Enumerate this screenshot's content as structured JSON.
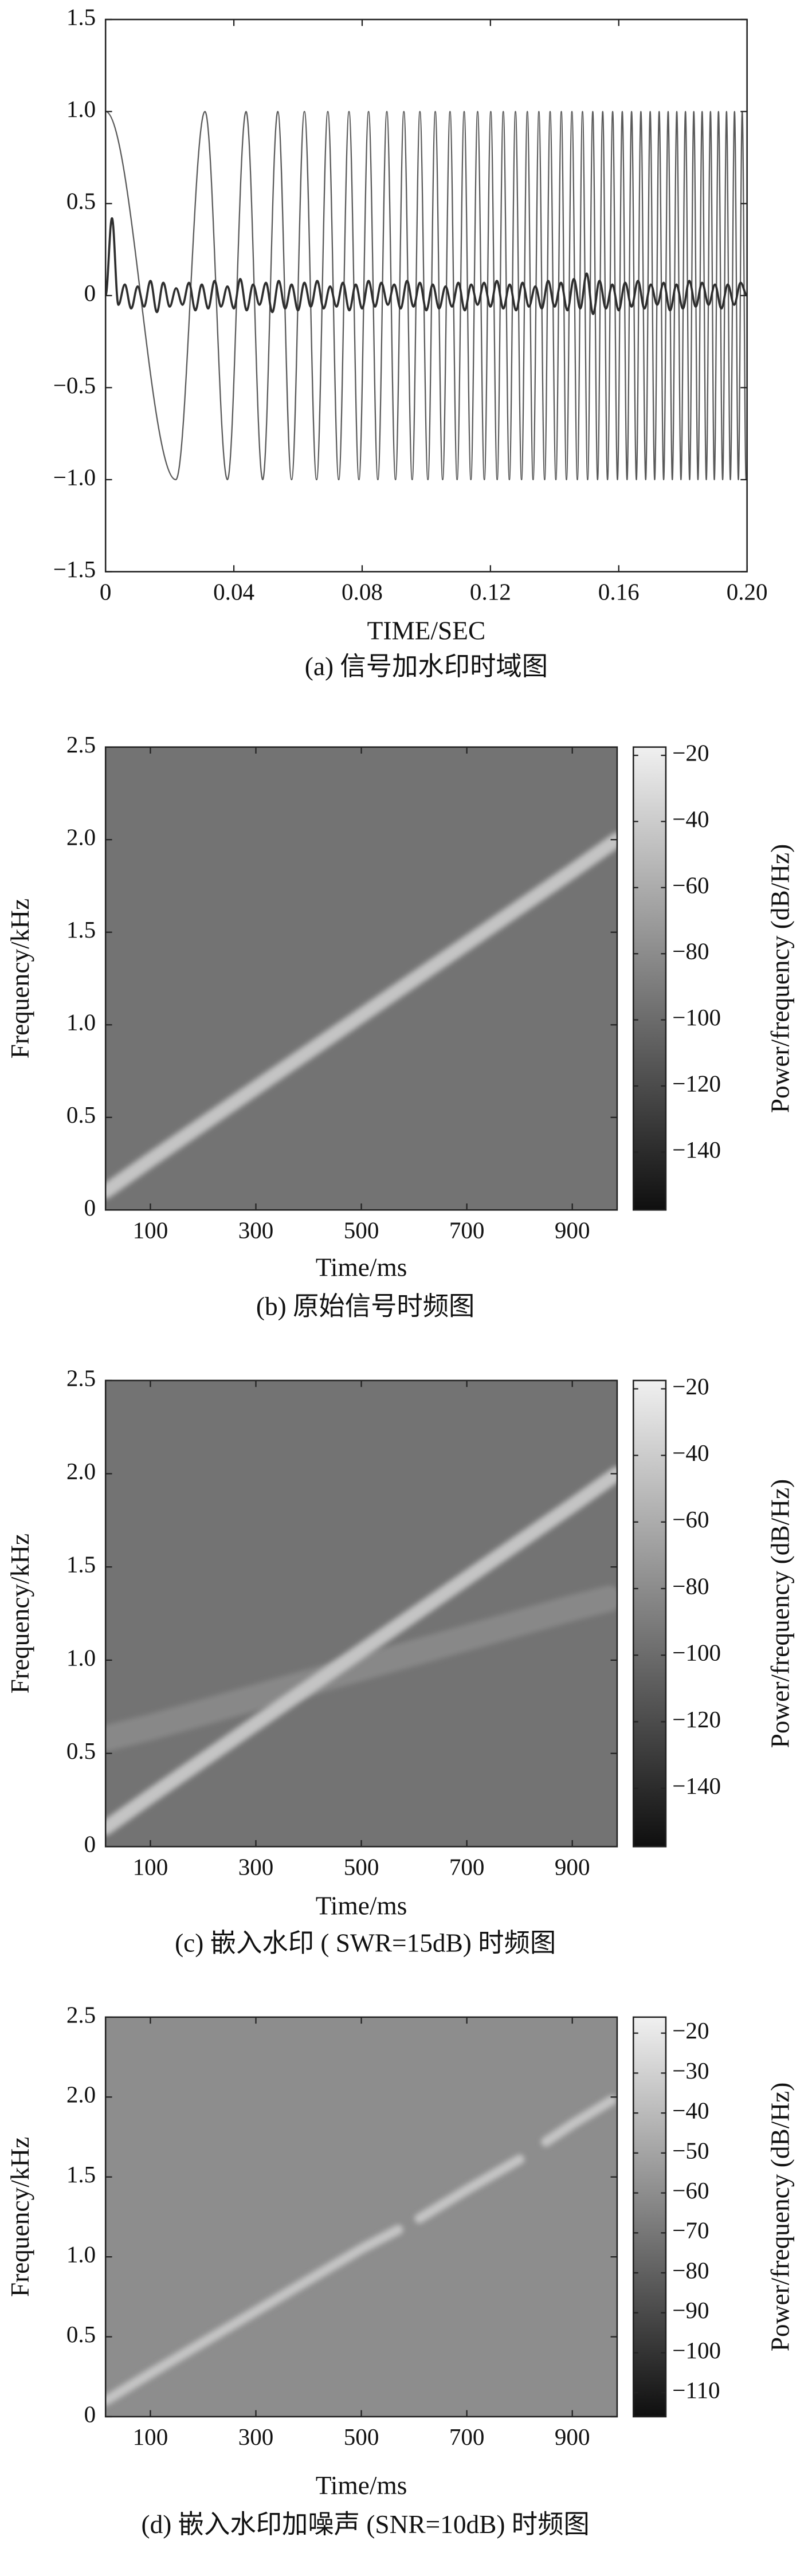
{
  "chart_data": [
    {
      "type": "line",
      "xlabel": "TIME/SEC",
      "caption": "(a) 信号加水印时域图",
      "xlim": [
        0,
        0.2
      ],
      "xticks": [
        0,
        0.04,
        0.08,
        0.12,
        0.16,
        {
          "value": 0.2,
          "label": "0.20"
        }
      ],
      "ylim": [
        -1.5,
        1.5
      ],
      "yticks": [
        {
          "value": -1.5,
          "label": "−1.5"
        },
        {
          "value": -1,
          "label": "−1.0"
        },
        {
          "value": -0.5,
          "label": "−0.5"
        },
        0,
        0.5,
        {
          "value": 1,
          "label": "1.0"
        },
        1.5
      ],
      "series": [
        {
          "color": "#5a5a5a",
          "x": [
            0,
            0.0219,
            0.031,
            0.038,
            0.0438,
            0.049,
            0.0537,
            0.058,
            0.062,
            0.0658,
            0.0693,
            0.0727,
            0.0759,
            0.079,
            0.082,
            0.0849,
            0.0877,
            0.0904,
            0.093,
            0.0956,
            0.098,
            0.1005,
            0.1028,
            0.1051,
            0.1074,
            0.1096,
            0.1118,
            0.1139,
            0.116,
            0.1181,
            0.1201,
            0.1221,
            0.124,
            0.1259,
            0.1278,
            0.1297,
            0.1315,
            0.1333,
            0.1351,
            0.1369,
            0.1386,
            0.1404,
            0.1421,
            0.1437,
            0.1454,
            0.1471,
            0.1487,
            0.1503,
            0.1519,
            0.1534,
            0.155,
            0.1565,
            0.1581,
            0.1596,
            0.1611,
            0.1626,
            0.164,
            0.1655,
            0.1669,
            0.1684,
            0.1698,
            0.1712,
            0.1726,
            0.174,
            0.1754,
            0.1767,
            0.1781,
            0.1794,
            0.1808,
            0.1821,
            0.1834,
            0.1847,
            0.186,
            0.1873,
            0.1886,
            0.1898,
            0.1911,
            0.1924,
            0.1936,
            0.1948,
            0.1961,
            0.1973,
            0.1985,
            0.1997
          ],
          "values": [
            1,
            -1,
            1,
            -1,
            1,
            -1,
            1,
            -1,
            1,
            -1,
            1,
            -1,
            1,
            -1,
            1,
            -1,
            1,
            -1,
            1,
            -1,
            1,
            -1,
            1,
            -1,
            1,
            -1,
            1,
            -1,
            1,
            -1,
            1,
            -1,
            1,
            -1,
            1,
            -1,
            1,
            -1,
            1,
            -1,
            1,
            -1,
            1,
            -1,
            1,
            -1,
            1,
            -1,
            1,
            -1,
            1,
            -1,
            1,
            -1,
            1,
            -1,
            1,
            -1,
            1,
            -1,
            1,
            -1,
            1,
            -1,
            1,
            -1,
            1,
            -1,
            1,
            -1,
            1,
            -1,
            1,
            -1,
            1,
            -1,
            1,
            -1,
            1,
            -1,
            1,
            -1,
            1,
            -1
          ]
        },
        {
          "color": "#2e2e2e",
          "x": [
            0,
            0.002,
            0.004,
            0.006,
            0.008,
            0.01,
            0.012,
            0.014,
            0.016,
            0.018,
            0.02,
            0.022,
            0.024,
            0.026,
            0.028,
            0.03,
            0.032,
            0.034,
            0.036,
            0.038,
            0.04,
            0.042,
            0.044,
            0.046,
            0.048,
            0.05,
            0.052,
            0.054,
            0.056,
            0.058,
            0.06,
            0.062,
            0.064,
            0.066,
            0.068,
            0.07,
            0.072,
            0.074,
            0.076,
            0.078,
            0.08,
            0.082,
            0.084,
            0.086,
            0.088,
            0.09,
            0.092,
            0.094,
            0.096,
            0.098,
            0.1,
            0.102,
            0.104,
            0.106,
            0.108,
            0.11,
            0.112,
            0.114,
            0.116,
            0.118,
            0.12,
            0.122,
            0.124,
            0.126,
            0.128,
            0.13,
            0.132,
            0.134,
            0.136,
            0.138,
            0.14,
            0.142,
            0.144,
            0.146,
            0.148,
            0.15,
            0.152,
            0.154,
            0.156,
            0.158,
            0.16,
            0.162,
            0.164,
            0.166,
            0.168,
            0.17,
            0.172,
            0.174,
            0.176,
            0.178,
            0.18,
            0.182,
            0.184,
            0.186,
            0.188,
            0.19,
            0.192,
            0.194,
            0.196,
            0.198,
            0.2
          ],
          "values": [
            0,
            0.42,
            -0.05,
            0.06,
            -0.07,
            0.05,
            -0.06,
            0.08,
            -0.09,
            0.07,
            -0.06,
            0.04,
            -0.05,
            0.07,
            -0.08,
            0.06,
            -0.07,
            0.08,
            -0.06,
            0.05,
            -0.07,
            0.09,
            -0.08,
            0.06,
            -0.05,
            0.07,
            -0.09,
            0.08,
            -0.07,
            0.06,
            -0.08,
            0.07,
            -0.06,
            0.08,
            -0.07,
            0.05,
            -0.06,
            0.07,
            -0.08,
            0.06,
            -0.07,
            0.08,
            -0.06,
            0.07,
            -0.05,
            0.06,
            -0.07,
            0.08,
            -0.06,
            0.07,
            -0.08,
            0.06,
            -0.07,
            0.05,
            -0.06,
            0.07,
            -0.08,
            0.06,
            -0.05,
            0.07,
            -0.06,
            0.08,
            -0.07,
            0.06,
            -0.08,
            0.07,
            -0.06,
            0.05,
            -0.07,
            0.08,
            -0.06,
            0.07,
            -0.08,
            0.09,
            -0.07,
            0.12,
            -0.1,
            0.08,
            -0.07,
            0.06,
            -0.08,
            0.07,
            -0.06,
            0.08,
            -0.07,
            0.06,
            -0.05,
            0.07,
            -0.08,
            0.06,
            -0.07,
            0.08,
            -0.06,
            0.07,
            -0.05,
            0.06,
            -0.07,
            0.06,
            -0.05,
            0.07,
            0
          ]
        }
      ]
    },
    {
      "type": "spectrogram",
      "xlabel": "Time/ms",
      "ylabel": "Frequency/kHz",
      "colorbar_label": "Power/frequency (dB/Hz)",
      "caption": "(b) 原始信号时频图",
      "xlim": [
        15,
        985
      ],
      "xticks": [
        100,
        300,
        500,
        700,
        900
      ],
      "ylim": [
        0,
        2.5
      ],
      "yticks": [
        0,
        0.5,
        {
          "value": 1,
          "label": "1.0"
        },
        1.5,
        {
          "value": 2,
          "label": "2.0"
        },
        2.5
      ],
      "clim": [
        -157.5,
        -17.5
      ],
      "cticks": [
        {
          "value": -140,
          "label": "−140"
        },
        {
          "value": -120,
          "label": "−120"
        },
        {
          "value": -100,
          "label": "−100"
        },
        {
          "value": -80,
          "label": "−80"
        },
        {
          "value": -60,
          "label": "−60"
        },
        {
          "value": -40,
          "label": "−40"
        },
        {
          "value": -20,
          "label": "−20"
        }
      ],
      "background_level": -95,
      "series": [
        {
          "level": -45,
          "x": [
            15,
            100,
            300,
            500,
            700,
            900,
            985
          ],
          "values": [
            0.1,
            0.27,
            0.66,
            1.05,
            1.44,
            1.83,
            2.0
          ]
        }
      ]
    },
    {
      "type": "spectrogram",
      "xlabel": "Time/ms",
      "ylabel": "Frequency/kHz",
      "colorbar_label": "Power/frequency (dB/Hz)",
      "caption": "(c) 嵌入水印 ( SWR=15dB) 时频图",
      "xlim": [
        15,
        985
      ],
      "xticks": [
        100,
        300,
        500,
        700,
        900
      ],
      "ylim": [
        0,
        2.5
      ],
      "yticks": [
        0,
        0.5,
        {
          "value": 1,
          "label": "1.0"
        },
        1.5,
        {
          "value": 2,
          "label": "2.0"
        },
        2.5
      ],
      "clim": [
        -157.5,
        -17.5
      ],
      "cticks": [
        {
          "value": -140,
          "label": "−140"
        },
        {
          "value": -120,
          "label": "−120"
        },
        {
          "value": -100,
          "label": "−100"
        },
        {
          "value": -80,
          "label": "−80"
        },
        {
          "value": -60,
          "label": "−60"
        },
        {
          "value": -40,
          "label": "−40"
        },
        {
          "value": -20,
          "label": "−20"
        }
      ],
      "background_level": -95,
      "series": [
        {
          "level": -82,
          "x": [
            15,
            100,
            200,
            300,
            400,
            500,
            600,
            700,
            800,
            900,
            970
          ],
          "values": [
            0.58,
            0.64,
            0.72,
            0.8,
            0.88,
            0.96,
            1.04,
            1.12,
            1.2,
            1.28,
            1.33
          ]
        },
        {
          "level": -45,
          "x": [
            15,
            100,
            300,
            500,
            700,
            900,
            985
          ],
          "values": [
            0.1,
            0.27,
            0.66,
            1.05,
            1.44,
            1.83,
            2.0
          ]
        }
      ]
    },
    {
      "type": "spectrogram",
      "xlabel": "Time/ms",
      "ylabel": "Frequency/kHz",
      "colorbar_label": "Power/frequency (dB/Hz)",
      "caption": "(d) 嵌入水印加噪声 (SNR=10dB) 时频图",
      "xlim": [
        15,
        985
      ],
      "xticks": [
        100,
        300,
        500,
        700,
        900
      ],
      "ylim": [
        0,
        2.5
      ],
      "yticks": [
        0,
        0.5,
        {
          "value": 1,
          "label": "1.0"
        },
        1.5,
        {
          "value": 2,
          "label": "2.0"
        },
        2.5
      ],
      "clim": [
        -116,
        -16
      ],
      "cticks": [
        {
          "value": -110,
          "label": "−110"
        },
        {
          "value": -100,
          "label": "−100"
        },
        {
          "value": -90,
          "label": "−90"
        },
        {
          "value": -80,
          "label": "−80"
        },
        {
          "value": -70,
          "label": "−70"
        },
        {
          "value": -60,
          "label": "−60"
        },
        {
          "value": -50,
          "label": "−50"
        },
        {
          "value": -40,
          "label": "−40"
        },
        {
          "value": -30,
          "label": "−30"
        },
        {
          "value": -20,
          "label": "−20"
        }
      ],
      "background_level": -60,
      "series": [
        {
          "level": -35,
          "x": [
            15,
            100,
            300,
            500,
            570,
            590,
            610,
            700,
            800,
            830,
            850,
            900,
            975
          ],
          "values": [
            0.1,
            0.27,
            0.66,
            1.05,
            1.17,
            null,
            1.24,
            1.42,
            1.61,
            null,
            1.72,
            1.83,
            1.98
          ]
        }
      ]
    }
  ]
}
